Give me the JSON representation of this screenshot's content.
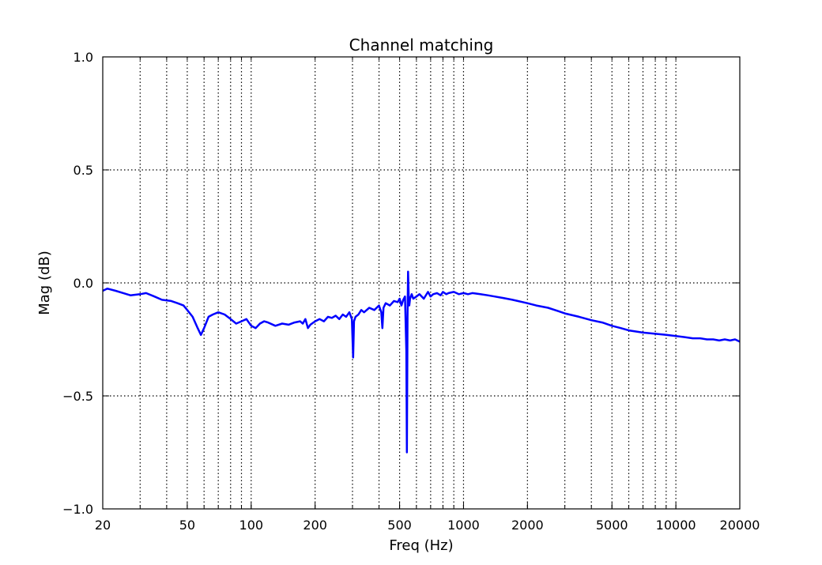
{
  "chart_data": {
    "type": "line",
    "title": "Channel matching",
    "xlabel": "Freq (Hz)",
    "ylabel": "Mag (dB)",
    "xscale": "log",
    "xlim": [
      20,
      20000
    ],
    "ylim": [
      -1.0,
      1.0
    ],
    "grid": true,
    "x_ticks": [
      20,
      50,
      100,
      200,
      500,
      1000,
      2000,
      5000,
      10000,
      20000
    ],
    "x_tick_labels": [
      "20",
      "50",
      "100",
      "200",
      "500",
      "1000",
      "2000",
      "5000",
      "10000",
      "20000"
    ],
    "y_ticks": [
      -1.0,
      -0.5,
      0.0,
      0.5,
      1.0
    ],
    "y_tick_labels": [
      "−1.0",
      "−0.5",
      "0.0",
      "0.5",
      "1.0"
    ],
    "color": "#0000ff",
    "series": [
      {
        "x": [
          20,
          21,
          23,
          25,
          27,
          30,
          32,
          35,
          38,
          42,
          45,
          48,
          50,
          53,
          56,
          58,
          60,
          63,
          66,
          70,
          75,
          80,
          85,
          90,
          95,
          100,
          105,
          110,
          115,
          120,
          130,
          140,
          150,
          160,
          170,
          175,
          180,
          185,
          190,
          200,
          210,
          220,
          230,
          240,
          250,
          260,
          270,
          280,
          290,
          298,
          302,
          305,
          310,
          320,
          330,
          340,
          360,
          380,
          400,
          410,
          415,
          420,
          430,
          450,
          470,
          490,
          500,
          510,
          520,
          530,
          538,
          541,
          545,
          548,
          552,
          555,
          560,
          570,
          580,
          600,
          620,
          650,
          680,
          700,
          720,
          750,
          780,
          800,
          830,
          850,
          900,
          950,
          1000,
          1050,
          1100,
          1200,
          1300,
          1400,
          1500,
          1600,
          1700,
          1800,
          1900,
          2000,
          2200,
          2500,
          2800,
          3000,
          3500,
          4000,
          4500,
          5000,
          5500,
          6000,
          7000,
          8000,
          9000,
          10000,
          11000,
          12000,
          13000,
          14000,
          15000,
          16000,
          17000,
          18000,
          19000,
          20000
        ],
        "y": [
          -0.035,
          -0.025,
          -0.035,
          -0.045,
          -0.055,
          -0.05,
          -0.045,
          -0.06,
          -0.075,
          -0.08,
          -0.09,
          -0.1,
          -0.12,
          -0.15,
          -0.2,
          -0.23,
          -0.2,
          -0.15,
          -0.14,
          -0.13,
          -0.14,
          -0.16,
          -0.18,
          -0.17,
          -0.16,
          -0.19,
          -0.2,
          -0.18,
          -0.17,
          -0.175,
          -0.19,
          -0.18,
          -0.185,
          -0.175,
          -0.17,
          -0.18,
          -0.16,
          -0.2,
          -0.185,
          -0.17,
          -0.16,
          -0.17,
          -0.15,
          -0.155,
          -0.145,
          -0.16,
          -0.14,
          -0.15,
          -0.13,
          -0.16,
          -0.33,
          -0.17,
          -0.15,
          -0.14,
          -0.12,
          -0.13,
          -0.11,
          -0.12,
          -0.1,
          -0.13,
          -0.2,
          -0.11,
          -0.09,
          -0.1,
          -0.08,
          -0.085,
          -0.07,
          -0.1,
          -0.075,
          -0.06,
          -0.3,
          -0.75,
          -0.15,
          0.05,
          -0.06,
          -0.1,
          -0.07,
          -0.05,
          -0.07,
          -0.06,
          -0.05,
          -0.07,
          -0.04,
          -0.06,
          -0.05,
          -0.045,
          -0.055,
          -0.04,
          -0.05,
          -0.045,
          -0.04,
          -0.05,
          -0.045,
          -0.05,
          -0.045,
          -0.05,
          -0.055,
          -0.06,
          -0.065,
          -0.07,
          -0.075,
          -0.08,
          -0.085,
          -0.09,
          -0.1,
          -0.11,
          -0.125,
          -0.135,
          -0.15,
          -0.165,
          -0.175,
          -0.19,
          -0.2,
          -0.21,
          -0.22,
          -0.225,
          -0.23,
          -0.235,
          -0.24,
          -0.245,
          -0.245,
          -0.25,
          -0.25,
          -0.255,
          -0.25,
          -0.255,
          -0.25,
          -0.26
        ]
      }
    ]
  }
}
